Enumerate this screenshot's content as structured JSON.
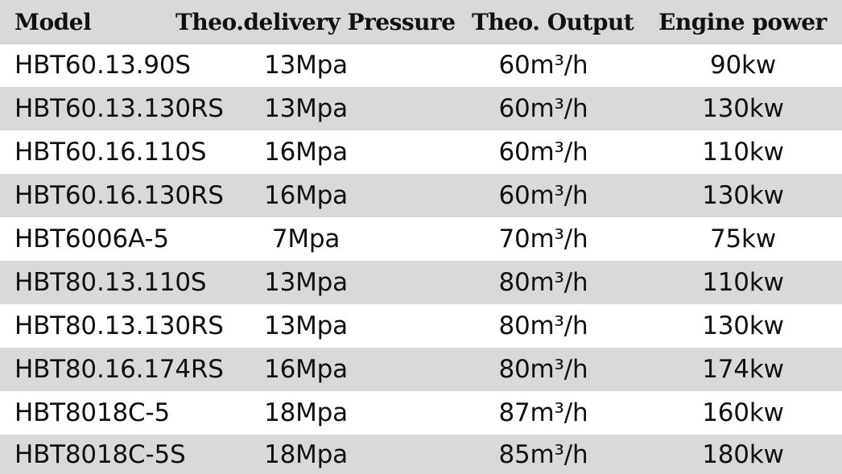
{
  "table": {
    "headers": {
      "model": "Model",
      "delivery_pressure": "Theo.delivery Pressure",
      "output": "Theo. Output",
      "engine_power": "Engine power"
    },
    "rows": [
      {
        "model": "HBT60.13.90S",
        "pressure": "13Mpa",
        "output": "60m³/h",
        "power": "90kw"
      },
      {
        "model": "HBT60.13.130RS",
        "pressure": "13Mpa",
        "output": "60m³/h",
        "power": "130kw"
      },
      {
        "model": "HBT60.16.110S",
        "pressure": "16Mpa",
        "output": "60m³/h",
        "power": "110kw"
      },
      {
        "model": "HBT60.16.130RS",
        "pressure": "16Mpa",
        "output": "60m³/h",
        "power": "130kw"
      },
      {
        "model": "HBT6006A-5",
        "pressure": "7Mpa",
        "output": "70m³/h",
        "power": "75kw"
      },
      {
        "model": "HBT80.13.110S",
        "pressure": "13Mpa",
        "output": "80m³/h",
        "power": "110kw"
      },
      {
        "model": "HBT80.13.130RS",
        "pressure": "13Mpa",
        "output": "80m³/h",
        "power": "130kw"
      },
      {
        "model": "HBT80.16.174RS",
        "pressure": "16Mpa",
        "output": "80m³/h",
        "power": "174kw"
      },
      {
        "model": "HBT8018C-5",
        "pressure": "18Mpa",
        "output": "87m³/h",
        "power": "160kw"
      },
      {
        "model": "HBT8018C-5S",
        "pressure": "18Mpa",
        "output": "85m³/h",
        "power": "180kw"
      }
    ]
  },
  "colors": {
    "header_background": "#d9d9d9",
    "stripe_background": "#d9d9d9",
    "text": "#111111"
  }
}
